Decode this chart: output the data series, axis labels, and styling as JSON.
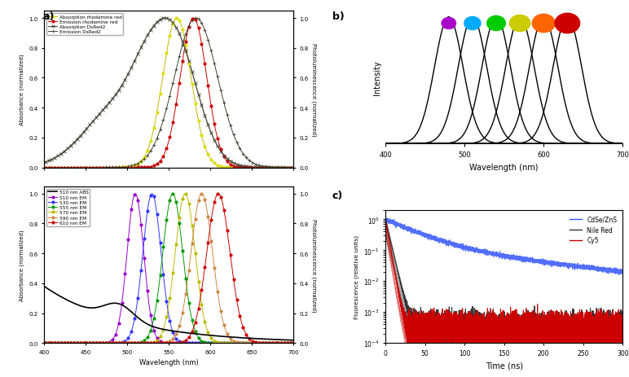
{
  "panel_a_top": {
    "ylabel_left": "Absorbance (normalized)",
    "ylabel_right": "Photoluminescence (normalized)",
    "xlim": [
      400,
      700
    ],
    "ylim": [
      0.0,
      1.05
    ],
    "legend": [
      {
        "label": "Absorption rhodamine red",
        "color": "#cccc00"
      },
      {
        "label": "Emission rhodamine red",
        "color": "#cc0000"
      },
      {
        "label": "Absorption DsRed2",
        "color": "#404030"
      },
      {
        "label": "Emission DsRed2",
        "color": "#404030"
      }
    ]
  },
  "panel_a_bottom": {
    "ylabel_left": "Absorbance (normalized)",
    "ylabel_right": "Photoluminescence (normalized)",
    "xlim": [
      400,
      700
    ],
    "ylim": [
      0.0,
      1.05
    ],
    "xlabel": "Wavelength (nm)",
    "em_centers": [
      510,
      530,
      555,
      570,
      590,
      610
    ],
    "em_colors": [
      "#9900cc",
      "#3333ff",
      "#009900",
      "#bbbb00",
      "#cc8844",
      "#cc0000"
    ],
    "em_sigmas": [
      10,
      11,
      12,
      12,
      13,
      14
    ],
    "legend": [
      {
        "label": "510 nm ABS"
      },
      {
        "label": "510 nm EM"
      },
      {
        "label": "530 nm EM"
      },
      {
        "label": "555 nm EM"
      },
      {
        "label": "570 nm EM"
      },
      {
        "label": "590 nm EM"
      },
      {
        "label": "610 nm EM"
      }
    ]
  },
  "panel_b": {
    "xlabel": "Wavelength (nm)",
    "ylabel": "Intensity",
    "xlim": [
      400,
      700
    ],
    "peaks": [
      480,
      510,
      540,
      570,
      600,
      630
    ],
    "dot_colors": [
      "#aa00cc",
      "#00aaff",
      "#00cc00",
      "#cccc00",
      "#ff6600",
      "#cc0000"
    ],
    "sigma": 18
  },
  "panel_c": {
    "xlabel": "Time (ns)",
    "ylabel": "Fluorescence (relative units)",
    "xlim": [
      0,
      300
    ],
    "legend": [
      {
        "label": "CdSe/ZnS",
        "color": "#3355ff"
      },
      {
        "label": "Nile Red",
        "color": "#333333"
      },
      {
        "label": "Cy5",
        "color": "#cc0000"
      }
    ]
  }
}
